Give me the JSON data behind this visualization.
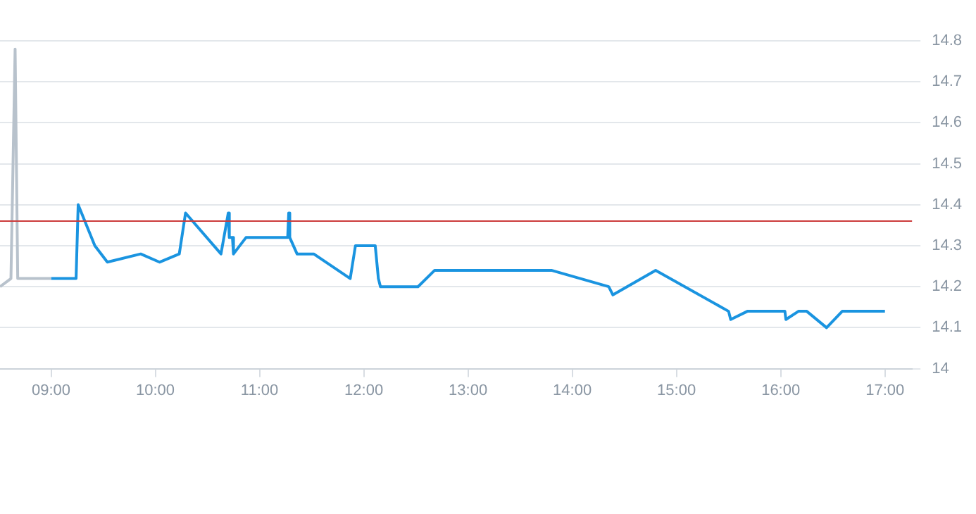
{
  "chart_data": {
    "type": "line",
    "series": [
      {
        "color": "#b8c2cc",
        "x": [
          8.51,
          8.615,
          8.655,
          8.68,
          9.0
        ],
        "values": [
          14.2,
          14.22,
          14.78,
          14.22,
          14.22
        ]
      },
      {
        "color": "#1a94e0",
        "x": [
          9.0,
          9.24,
          9.26,
          9.42,
          9.54,
          9.86,
          10.04,
          10.23,
          10.29,
          10.63,
          10.7,
          10.71,
          10.74,
          10.75,
          10.87,
          11.27,
          11.28,
          11.29,
          11.36,
          11.52,
          11.87,
          11.92,
          12.11,
          12.14,
          12.16,
          12.52,
          12.68,
          13.8,
          14.35,
          14.39,
          14.8,
          15.5,
          15.52,
          15.68,
          16.04,
          16.05,
          16.17,
          16.25,
          16.44,
          16.59,
          17.0
        ],
        "values": [
          14.22,
          14.22,
          14.4,
          14.3,
          14.26,
          14.28,
          14.26,
          14.28,
          14.38,
          14.28,
          14.38,
          14.32,
          14.32,
          14.28,
          14.32,
          14.32,
          14.38,
          14.32,
          14.28,
          14.28,
          14.22,
          14.3,
          14.3,
          14.22,
          14.2,
          14.2,
          14.24,
          14.24,
          14.2,
          14.18,
          14.24,
          14.14,
          14.12,
          14.14,
          14.14,
          14.12,
          14.14,
          14.14,
          14.1,
          14.14,
          14.14
        ]
      }
    ],
    "xlim": [
      8.51,
      17.26
    ],
    "xticks": [
      {
        "value": 9,
        "label": "09:00"
      },
      {
        "value": 10,
        "label": "10:00"
      },
      {
        "value": 11,
        "label": "11:00"
      },
      {
        "value": 12,
        "label": "12:00"
      },
      {
        "value": 13,
        "label": "13:00"
      },
      {
        "value": 14,
        "label": "14:00"
      },
      {
        "value": 15,
        "label": "15:00"
      },
      {
        "value": 16,
        "label": "16:00"
      },
      {
        "value": 17,
        "label": "17:00"
      }
    ],
    "ylim": [
      14,
      14.8
    ],
    "yticks": [
      14,
      14.1,
      14.2,
      14.3,
      14.4,
      14.5,
      14.6,
      14.7,
      14.8
    ],
    "ref_lines": [
      {
        "axis": "y",
        "value": 14.36,
        "color": "#cc3b3b"
      }
    ],
    "grid": "y",
    "legend": false
  }
}
